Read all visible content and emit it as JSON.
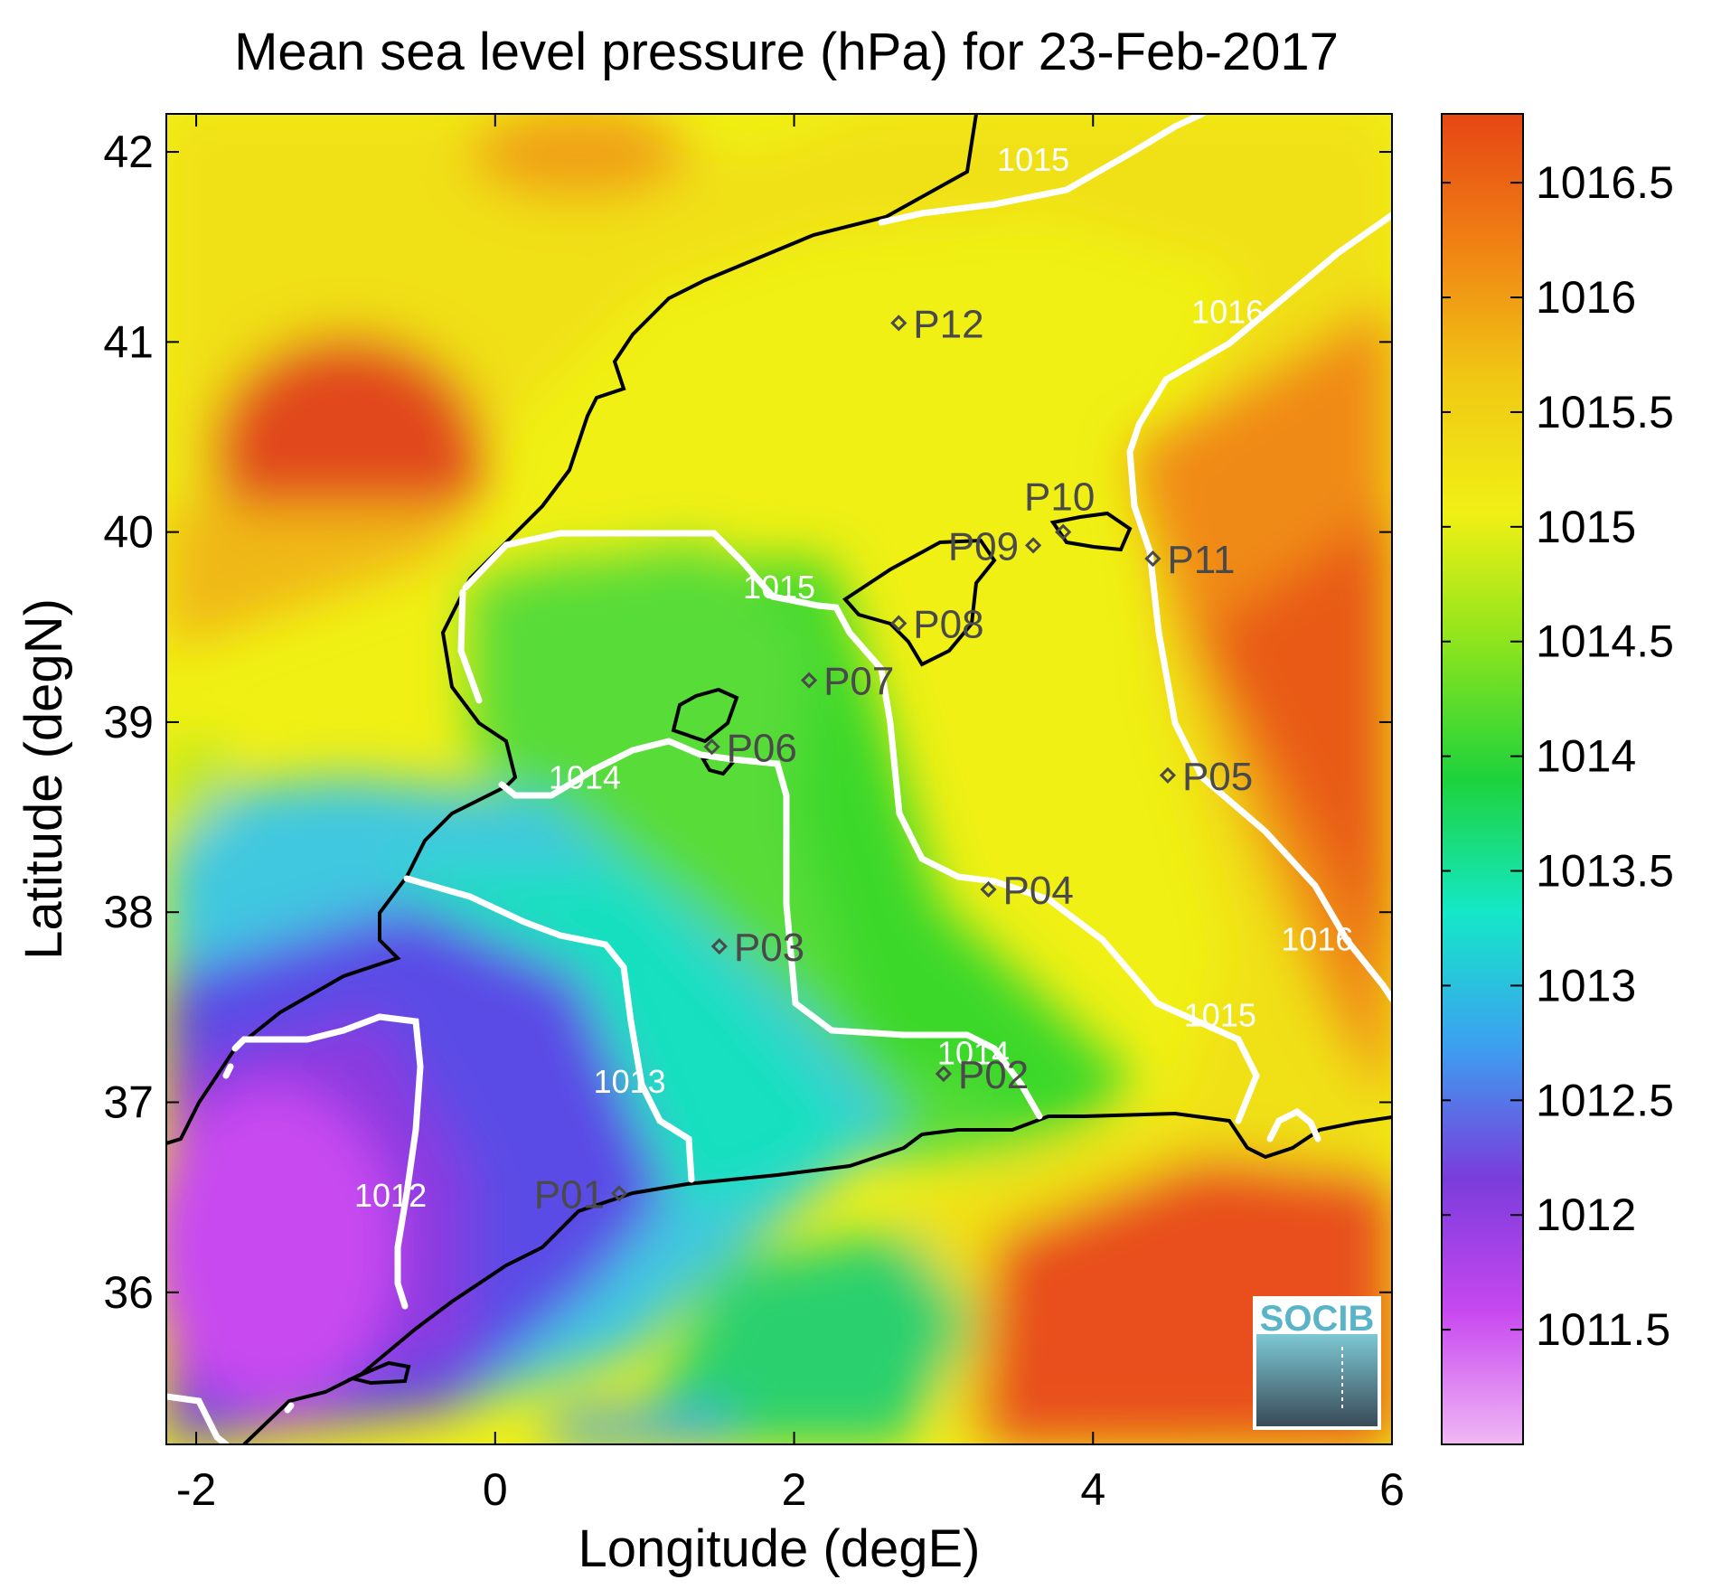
{
  "title": "Mean sea level pressure (hPa) for 23-Feb-2017",
  "chart_data": {
    "type": "heatmap",
    "title": "Mean sea level pressure (hPa) for 23-Feb-2017",
    "xlabel": "Longitude (degE)",
    "ylabel": "Latitude (degN)",
    "xlim": [
      -2.2,
      6.0
    ],
    "ylim": [
      35.2,
      42.2
    ],
    "x_ticks": [
      -2,
      0,
      2,
      4,
      6
    ],
    "x_tick_labels": [
      "-2",
      "0",
      "2",
      "4",
      "6"
    ],
    "y_ticks": [
      36,
      37,
      38,
      39,
      40,
      41,
      42
    ],
    "y_tick_labels": [
      "36",
      "37",
      "38",
      "39",
      "40",
      "41",
      "42"
    ],
    "colorbar": {
      "range": [
        1011.0,
        1016.8
      ],
      "ticks": [
        1011.5,
        1012,
        1012.5,
        1013,
        1013.5,
        1014,
        1014.5,
        1015,
        1015.5,
        1016,
        1016.5
      ],
      "tick_labels": [
        "1011.5",
        "1012",
        "1012.5",
        "1013",
        "1013.5",
        "1014",
        "1014.5",
        "1015",
        "1015.5",
        "1016",
        "1016.5"
      ],
      "colors": [
        "#f0b8f4",
        "#c848f0",
        "#7a3cdc",
        "#3ca0f0",
        "#14e8c8",
        "#1ed23c",
        "#8ae41e",
        "#f0f014",
        "#f0c814",
        "#f08214",
        "#e64614"
      ]
    },
    "contour_labels": [
      {
        "text": "1015",
        "lon": 3.6,
        "lat": 41.9
      },
      {
        "text": "1016",
        "lon": 4.9,
        "lat": 41.1
      },
      {
        "text": "1015",
        "lon": 1.9,
        "lat": 39.65
      },
      {
        "text": "1014",
        "lon": 0.6,
        "lat": 38.65
      },
      {
        "text": "1016",
        "lon": 5.5,
        "lat": 37.8
      },
      {
        "text": "1015",
        "lon": 4.85,
        "lat": 37.4
      },
      {
        "text": "1013",
        "lon": 0.9,
        "lat": 37.05
      },
      {
        "text": "1012",
        "lon": -0.7,
        "lat": 36.45
      },
      {
        "text": "1014",
        "lon": 3.2,
        "lat": 37.2
      }
    ],
    "stations": [
      {
        "name": "P01",
        "lon": 0.83,
        "lat": 36.52,
        "label_side": "left"
      },
      {
        "name": "P02",
        "lon": 3.0,
        "lat": 37.15,
        "label_side": "right"
      },
      {
        "name": "P03",
        "lon": 1.5,
        "lat": 37.82,
        "label_side": "right"
      },
      {
        "name": "P04",
        "lon": 3.3,
        "lat": 38.12,
        "label_side": "right"
      },
      {
        "name": "P05",
        "lon": 4.5,
        "lat": 38.72,
        "label_side": "right"
      },
      {
        "name": "P06",
        "lon": 1.45,
        "lat": 38.87,
        "label_side": "right"
      },
      {
        "name": "P07",
        "lon": 2.1,
        "lat": 39.22,
        "label_side": "right"
      },
      {
        "name": "P08",
        "lon": 2.7,
        "lat": 39.52,
        "label_side": "right"
      },
      {
        "name": "P09",
        "lon": 3.6,
        "lat": 39.93,
        "label_side": "left"
      },
      {
        "name": "P10",
        "lon": 3.8,
        "lat": 40.0,
        "label_side": "top"
      },
      {
        "name": "P11",
        "lon": 4.4,
        "lat": 39.86,
        "label_side": "right"
      },
      {
        "name": "P12",
        "lon": 2.7,
        "lat": 41.1,
        "label_side": "right"
      }
    ]
  },
  "logo": {
    "text": "SOCIB",
    "color": "#5ab4c8"
  },
  "colors": {
    "coastline": "#000000",
    "contour": "#ffffff",
    "station": "#4a4a4a"
  }
}
